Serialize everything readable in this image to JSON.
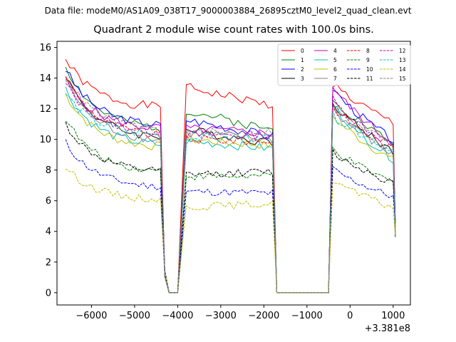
{
  "header": {
    "file_label": "Data file: modeM0/AS1A09_038T17_9000003884_26895cztM0_level2_quad_clean.evt"
  },
  "chart_data": {
    "type": "line",
    "title": "Quadrant 2 module wise count rates with 100.0s bins.",
    "x_offset_label": "+3.381e8",
    "xlim": [
      -6800,
      1400
    ],
    "ylim": [
      -0.8,
      16.4
    ],
    "xticks": [
      -6000,
      -5000,
      -4000,
      -3000,
      -2000,
      -1000,
      0,
      1000
    ],
    "xtick_labels": [
      "−6000",
      "−5000",
      "−4000",
      "−3000",
      "−2000",
      "−1000",
      "0",
      "1000"
    ],
    "yticks": [
      0,
      2,
      4,
      6,
      8,
      10,
      12,
      14,
      16
    ],
    "ytick_labels": [
      "0",
      "2",
      "4",
      "6",
      "8",
      "10",
      "12",
      "14",
      "16"
    ],
    "segments": [
      {
        "start": -6600,
        "end": -4400
      },
      {
        "start": -3800,
        "end": -1800
      },
      {
        "start": -400,
        "end": 1000
      }
    ],
    "gaps": [
      {
        "from": -4300,
        "to": -4000,
        "value": 0
      },
      {
        "from": -1700,
        "to": -500,
        "value": 0
      }
    ],
    "step": 100,
    "legend_location": "upper right",
    "legend_columns": 4,
    "series": [
      {
        "name": "0",
        "color": "#ff0000",
        "dash": "solid",
        "levels": [
          15.2,
          12.0,
          13.4,
          12.2,
          13.7
        ],
        "noise": 0.3,
        "seed": 1
      },
      {
        "name": "1",
        "color": "#008000",
        "dash": "solid",
        "levels": [
          14.8,
          10.6,
          11.9,
          10.6,
          12.8
        ],
        "noise": 0.3,
        "seed": 2
      },
      {
        "name": "2",
        "color": "#0000ff",
        "dash": "solid",
        "levels": [
          14.6,
          10.8,
          11.3,
          10.2,
          13.4
        ],
        "noise": 0.3,
        "seed": 3
      },
      {
        "name": "3",
        "color": "#000000",
        "dash": "solid",
        "levels": [
          14.2,
          10.0,
          10.6,
          9.8,
          12.5
        ],
        "noise": 0.3,
        "seed": 4
      },
      {
        "name": "4",
        "color": "#bf00bf",
        "dash": "solid",
        "levels": [
          13.9,
          10.6,
          10.7,
          10.4,
          13.5
        ],
        "noise": 0.3,
        "seed": 5
      },
      {
        "name": "5",
        "color": "#00bfbf",
        "dash": "solid",
        "levels": [
          13.3,
          9.5,
          9.9,
          9.4,
          12.3
        ],
        "noise": 0.3,
        "seed": 6
      },
      {
        "name": "6",
        "color": "#bfbf00",
        "dash": "solid",
        "levels": [
          13.0,
          9.4,
          10.0,
          9.6,
          11.6
        ],
        "noise": 0.3,
        "seed": 7
      },
      {
        "name": "7",
        "color": "#808080",
        "dash": "solid",
        "levels": [
          14.0,
          9.8,
          10.4,
          10.0,
          12.0
        ],
        "noise": 0.3,
        "seed": 8
      },
      {
        "name": "8",
        "color": "#ff0000",
        "dash": "dashed",
        "levels": [
          14.2,
          10.1,
          10.0,
          9.9,
          12.2
        ],
        "noise": 0.3,
        "seed": 9
      },
      {
        "name": "9",
        "color": "#008000",
        "dash": "dashed",
        "levels": [
          11.4,
          7.8,
          7.6,
          7.6,
          9.4
        ],
        "noise": 0.25,
        "seed": 10
      },
      {
        "name": "10",
        "color": "#0000ff",
        "dash": "dashed",
        "levels": [
          9.8,
          6.8,
          6.6,
          6.5,
          8.1
        ],
        "noise": 0.25,
        "seed": 11
      },
      {
        "name": "11",
        "color": "#000000",
        "dash": "dashed",
        "levels": [
          11.0,
          7.8,
          7.7,
          7.9,
          9.2
        ],
        "noise": 0.25,
        "seed": 12
      },
      {
        "name": "12",
        "color": "#bf00bf",
        "dash": "dashed",
        "levels": [
          13.6,
          10.4,
          10.3,
          10.3,
          12.6
        ],
        "noise": 0.3,
        "seed": 13
      },
      {
        "name": "13",
        "color": "#00bfbf",
        "dash": "dashed",
        "levels": [
          13.0,
          10.2,
          10.1,
          10.1,
          11.6
        ],
        "noise": 0.3,
        "seed": 14
      },
      {
        "name": "14",
        "color": "#bfbf00",
        "dash": "dashed",
        "levels": [
          8.2,
          6.0,
          5.6,
          5.8,
          7.4
        ],
        "noise": 0.25,
        "seed": 15
      },
      {
        "name": "15",
        "color": "#808080",
        "dash": "dashed",
        "levels": [
          14.1,
          10.5,
          10.4,
          10.5,
          12.3
        ],
        "noise": 0.3,
        "seed": 16
      }
    ]
  }
}
